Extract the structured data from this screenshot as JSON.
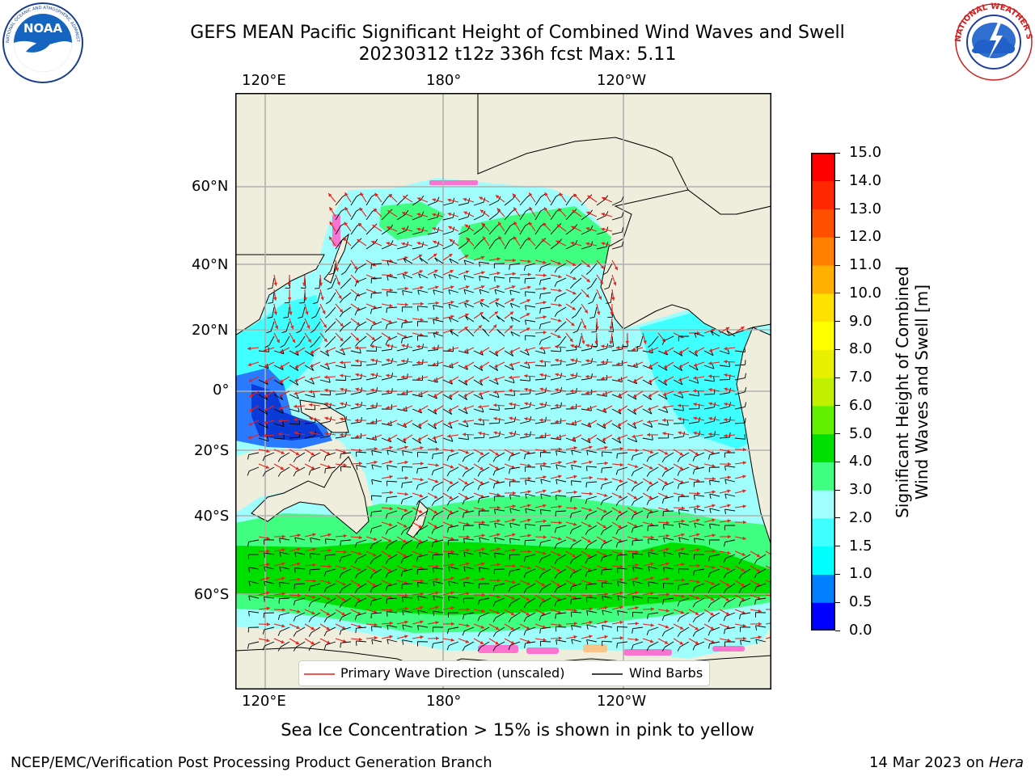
{
  "title": {
    "line1": "GEFS MEAN Pacific Significant Height of Combined Wind Waves and Swell",
    "line2": "20230312 t12z 336h fcst   Max: 5.11"
  },
  "logos": {
    "left": {
      "name": "NOAA",
      "text": "NOAA",
      "ring_text": "NATIONAL OCEANIC AND ATMOSPHERIC ADMINISTRATION · U.S. DEPARTMENT OF COMMERCE"
    },
    "right": {
      "name": "National Weather Service",
      "ring_text": "NATIONAL WEATHER SERVICE"
    }
  },
  "map": {
    "lon_labels": [
      "120°E",
      "180°",
      "120°W"
    ],
    "lat_labels": [
      "60°N",
      "40°N",
      "20°N",
      "0°",
      "20°S",
      "40°S",
      "60°S"
    ],
    "colors": {
      "land": "#efeddc",
      "ocean_base": "#9ffdfc",
      "grid": "#b0b0b0",
      "wave_arrow": "#e8201a",
      "wind_barb": "#000000",
      "ice": "#ff66cc"
    }
  },
  "legend": {
    "wave_label": "Primary Wave Direction (unscaled)",
    "barb_label": "Wind Barbs"
  },
  "colorbar": {
    "title": "Significant Height of Combined Wind Waves and Swell [m]",
    "title_line1": "Significant Height of Combined",
    "title_line2": "Wind Waves and Swell [m]",
    "ticks": [
      "0.0",
      "0.5",
      "1.0",
      "1.5",
      "2.0",
      "3.0",
      "4.0",
      "5.0",
      "6.0",
      "7.0",
      "8.0",
      "9.0",
      "10.0",
      "11.0",
      "12.0",
      "13.0",
      "14.0",
      "15.0"
    ],
    "colors": [
      "#0000ff",
      "#0080ff",
      "#00ffff",
      "#40ffff",
      "#a0ffff",
      "#40ff80",
      "#00e000",
      "#60f000",
      "#c0f000",
      "#e8f000",
      "#ffff00",
      "#ffe000",
      "#ffb000",
      "#ff8000",
      "#ff5000",
      "#ff2800",
      "#ff0000"
    ]
  },
  "chart_data": {
    "type": "heatmap",
    "title": "GEFS MEAN Pacific Significant Height of Combined Wind Waves and Swell",
    "subtitle": "20230312 t12z 336h fcst   Max: 5.11",
    "variable": "Significant Height of Combined Wind Waves and Swell [m]",
    "max_value": 5.11,
    "color_levels": [
      0.0,
      0.5,
      1.0,
      1.5,
      2.0,
      3.0,
      4.0,
      5.0,
      6.0,
      7.0,
      8.0,
      9.0,
      10.0,
      11.0,
      12.0,
      13.0,
      14.0,
      15.0
    ],
    "lon_ticks": [
      "120°E",
      "180°",
      "120°W"
    ],
    "lat_ticks": [
      "60°N",
      "40°N",
      "20°N",
      "0°",
      "20°S",
      "40°S",
      "60°S"
    ],
    "series": [
      {
        "name": "Primary Wave Direction (unscaled)"
      },
      {
        "name": "Wind Barbs"
      }
    ],
    "legend": "bottom-center"
  },
  "note": "Sea Ice Concentration > 15% is shown in pink to yellow",
  "footer": {
    "left": "NCEP/EMC/Verification Post Processing Product Generation Branch",
    "date": "14 Mar 2023 on ",
    "host": "Hera"
  }
}
